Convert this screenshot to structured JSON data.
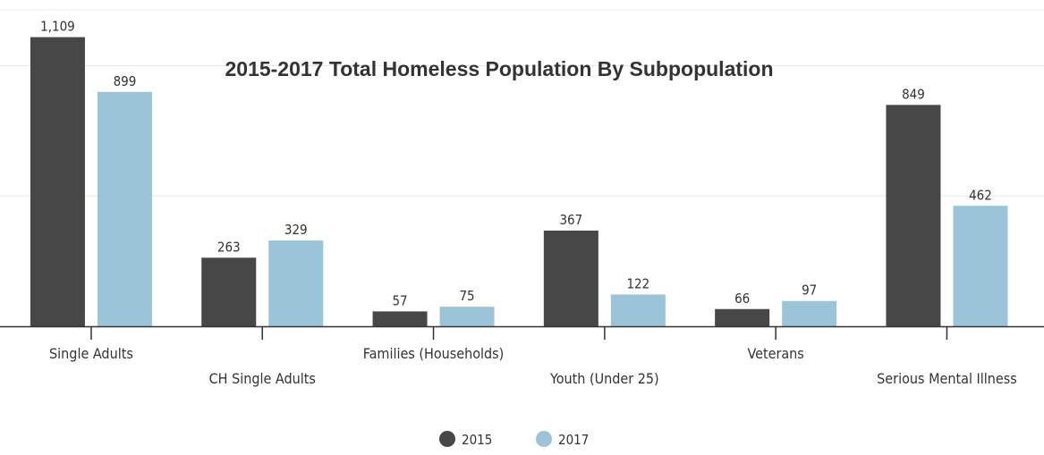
{
  "chart_data": {
    "type": "bar",
    "title": "2015-2017 Total Homeless Population By Subpopulation",
    "xlabel": "",
    "ylabel": "",
    "categories": [
      "Single Adults",
      "CH Single Adults",
      "Families (Households)",
      "Youth (Under 25)",
      "Veterans",
      "Serious Mental Illness"
    ],
    "series": [
      {
        "name": "2015",
        "color": "#474747",
        "values": [
          1109,
          263,
          57,
          367,
          66,
          849
        ],
        "labels": [
          "1,109",
          "263",
          "57",
          "367",
          "66",
          "849"
        ]
      },
      {
        "name": "2017",
        "color": "#9bc4d8",
        "values": [
          899,
          329,
          75,
          122,
          97,
          462
        ],
        "labels": [
          "899",
          "329",
          "75",
          "122",
          "97",
          "462"
        ]
      }
    ],
    "ylim": [
      0,
      1200
    ],
    "gridlines": [
      0,
      500,
      1000
    ],
    "grid": true,
    "legend": "bottom-center"
  }
}
